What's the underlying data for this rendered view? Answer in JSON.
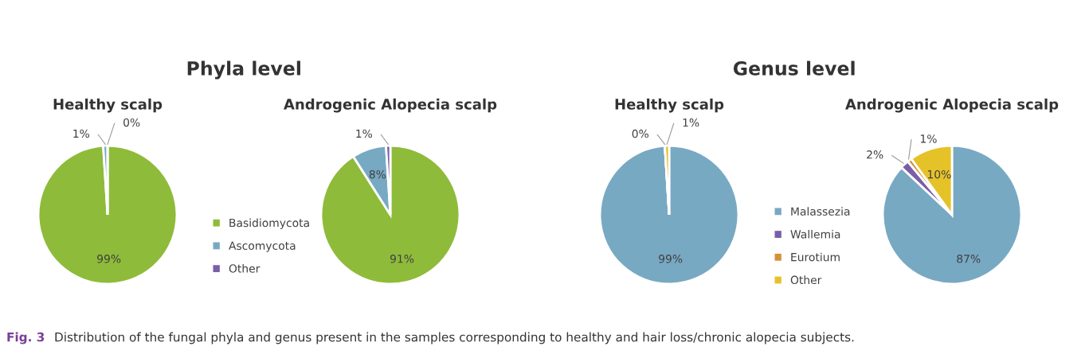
{
  "chart_data": [
    {
      "type": "pie",
      "title": "Healthy scalp",
      "legend": "right",
      "annotations": [
        "Phyla level"
      ],
      "categories": [
        "Basidiomycota",
        "Ascomycota",
        "Other"
      ],
      "values": [
        99,
        1,
        0
      ],
      "colors": [
        "#8fbb3a",
        "#78a9c3",
        "#7b5ea7"
      ],
      "value_labels": [
        "99%",
        "1%",
        "0%"
      ]
    },
    {
      "type": "pie",
      "title": "Androgenic Alopecia scalp",
      "categories": [
        null,
        null,
        null
      ],
      "values": [
        91,
        8,
        1
      ],
      "colors": [
        "#8fbb3a",
        "#78a9c3",
        "#7b5ea7"
      ],
      "value_labels": [
        "91%",
        "8%",
        "1%"
      ]
    },
    {
      "type": "pie",
      "title": "Healthy scalp",
      "legend": "right",
      "annotations": [
        "Genus level"
      ],
      "categories": [
        "Malassezia",
        "Wallemia",
        "Eurotium",
        "Other"
      ],
      "values": [
        99,
        0,
        0,
        1
      ],
      "colors": [
        "#78a9c3",
        "#7b5ea7",
        "#d4913a",
        "#e6c229"
      ],
      "value_labels": [
        "99%",
        "0%",
        null,
        "1%"
      ]
    },
    {
      "type": "pie",
      "title": "Androgenic Alopecia scalp",
      "annotations": [
        "Fig. 3",
        "Distribution of the fungal phyla and genus present in the samples corresponding to healthy and hair loss/chronic alopecia subjects."
      ],
      "categories": [
        null,
        null,
        null,
        null
      ],
      "values": [
        87,
        2,
        1,
        10
      ],
      "colors": [
        "#78a9c3",
        "#7b5ea7",
        "#d4913a",
        "#e6c229"
      ],
      "value_labels": [
        "87%",
        "2%",
        "1%",
        "10%"
      ]
    }
  ]
}
